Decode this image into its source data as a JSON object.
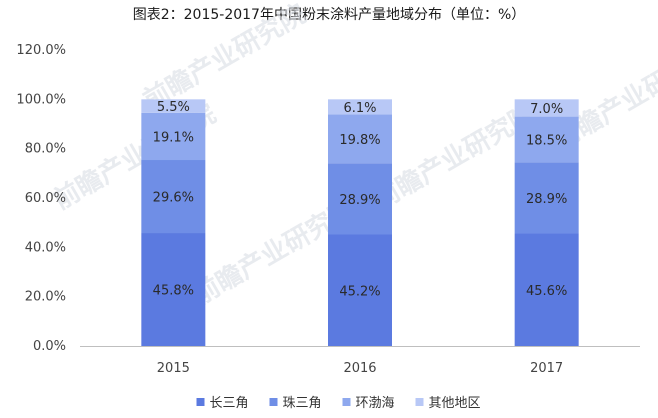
{
  "chart_data": {
    "type": "bar",
    "stacked": true,
    "title": "图表2：2015-2017年中国粉末涂料产量地域分布（单位：%）",
    "categories": [
      "2015",
      "2016",
      "2017"
    ],
    "series": [
      {
        "name": "长三角",
        "values": [
          45.8,
          45.2,
          45.6
        ],
        "labels": [
          "45.8%",
          "45.2%",
          "45.6%"
        ],
        "color": "#5b7ae0"
      },
      {
        "name": "珠三角",
        "values": [
          29.6,
          28.9,
          28.9
        ],
        "labels": [
          "29.6%",
          "28.9%",
          "28.9%"
        ],
        "color": "#6f8ee6"
      },
      {
        "name": "环渤海",
        "values": [
          19.1,
          19.8,
          18.5
        ],
        "labels": [
          "19.1%",
          "19.8%",
          "18.5%"
        ],
        "color": "#8ea8ee"
      },
      {
        "name": "其他地区",
        "values": [
          5.5,
          6.1,
          7.0
        ],
        "labels": [
          "5.5%",
          "6.1%",
          "7.0%"
        ],
        "color": "#b8c8f6"
      }
    ],
    "ylim": [
      0,
      120
    ],
    "yticks": [
      0,
      20,
      40,
      60,
      80,
      100,
      120
    ],
    "ytick_labels": [
      "0.0%",
      "20.0%",
      "40.0%",
      "60.0%",
      "80.0%",
      "100.0%",
      "120.0%"
    ],
    "grid": false,
    "legend_position": "bottom"
  },
  "watermark": "前瞻产业研究院"
}
